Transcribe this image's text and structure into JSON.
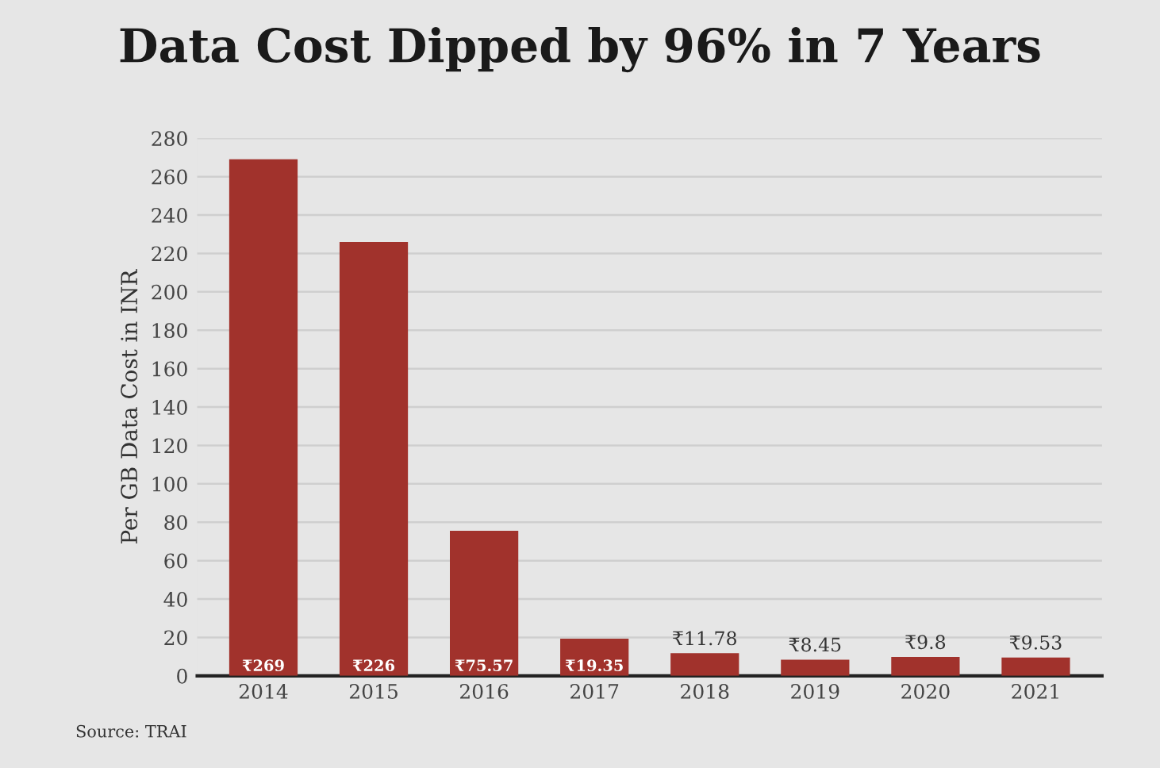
{
  "chart_data": {
    "type": "bar",
    "title": "Data Cost Dipped by 96% in 7 Years",
    "ylabel": "Per GB Data Cost in INR",
    "categories": [
      "2014",
      "2015",
      "2016",
      "2017",
      "2018",
      "2019",
      "2020",
      "2021"
    ],
    "values": [
      269,
      226,
      75.57,
      19.35,
      11.78,
      8.45,
      9.8,
      9.53
    ],
    "value_labels": [
      "₹269",
      "₹226",
      "₹75.57",
      "₹19.35",
      "₹11.78",
      "₹8.45",
      "₹9.8",
      "₹9.53"
    ],
    "color": "#a1322c",
    "ylim": [
      0,
      280
    ],
    "yticks": [
      0,
      20,
      40,
      60,
      80,
      100,
      120,
      140,
      160,
      180,
      200,
      220,
      240,
      260,
      280
    ],
    "grid": "y",
    "annotations": [
      "Source: TRAI"
    ]
  }
}
